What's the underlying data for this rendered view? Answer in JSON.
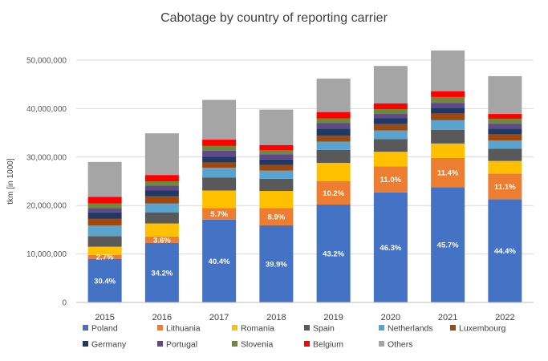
{
  "chart_data": {
    "type": "bar",
    "stacked": true,
    "title": "Cabotage by country of reporting carrier",
    "xlabel": "",
    "ylabel": "tkm [in 1000]",
    "ylim": [
      0,
      50000000
    ],
    "yticks": [
      0,
      10000000,
      20000000,
      30000000,
      40000000,
      50000000
    ],
    "ytick_labels": [
      "0",
      "10,000,000",
      "20,000,000",
      "30,000,000",
      "40,000,000",
      "50,000,000"
    ],
    "grid": true,
    "legend_position": "bottom",
    "categories": [
      "2015",
      "2016",
      "2017",
      "2018",
      "2019",
      "2020",
      "2021",
      "2022"
    ],
    "series": [
      {
        "name": "Poland",
        "color": "#4472c4",
        "values": [
          9000000,
          12300000,
          17100000,
          15900000,
          20200000,
          22700000,
          23800000,
          21300000
        ],
        "labels": [
          "30.4%",
          "34.2%",
          "40.4%",
          "39.9%",
          "43.2%",
          "46.3%",
          "45.7%",
          "44.4%"
        ]
      },
      {
        "name": "Lithuania",
        "color": "#ed7d31",
        "values": [
          800000,
          1300000,
          2400000,
          3600000,
          4800000,
          5400000,
          6000000,
          5300000
        ],
        "labels": [
          "2.7%",
          "3.6%",
          "5.7%",
          "8.9%",
          "10.2%",
          "11.0%",
          "11.4%",
          "11.1%"
        ]
      },
      {
        "name": "Romania",
        "color": "#ffc000",
        "values": [
          1700000,
          2700000,
          3600000,
          3500000,
          3800000,
          3000000,
          3000000,
          2600000
        ]
      },
      {
        "name": "Spain",
        "color": "#595959",
        "values": [
          2200000,
          2300000,
          2700000,
          2500000,
          2700000,
          2600000,
          2800000,
          2500000
        ]
      },
      {
        "name": "Netherlands",
        "color": "#5ba3cf",
        "values": [
          2200000,
          1800000,
          2000000,
          1700000,
          1700000,
          1800000,
          2000000,
          1700000
        ]
      },
      {
        "name": "Luxembourg",
        "color": "#9e480e",
        "values": [
          1400000,
          1500000,
          1100000,
          1200000,
          1200000,
          1300000,
          1400000,
          1300000
        ]
      },
      {
        "name": "Germany",
        "color": "#1f3864",
        "values": [
          1300000,
          1200000,
          1200000,
          1100000,
          1500000,
          1200000,
          1200000,
          1200000
        ]
      },
      {
        "name": "Portugal",
        "color": "#5e4a87",
        "values": [
          900000,
          1000000,
          1200000,
          1100000,
          1100000,
          900000,
          1000000,
          1000000
        ]
      },
      {
        "name": "Slovenia",
        "color": "#70883a",
        "values": [
          900000,
          900000,
          1000000,
          800000,
          1000000,
          1000000,
          1200000,
          1000000
        ]
      },
      {
        "name": "Belgium",
        "color": "#ff0000",
        "values": [
          1400000,
          1300000,
          1300000,
          1100000,
          1300000,
          1200000,
          1200000,
          1000000
        ]
      },
      {
        "name": "Others",
        "color": "#a5a5a5",
        "values": [
          7200000,
          8600000,
          8200000,
          7300000,
          6900000,
          7700000,
          8400000,
          7800000
        ]
      }
    ]
  }
}
